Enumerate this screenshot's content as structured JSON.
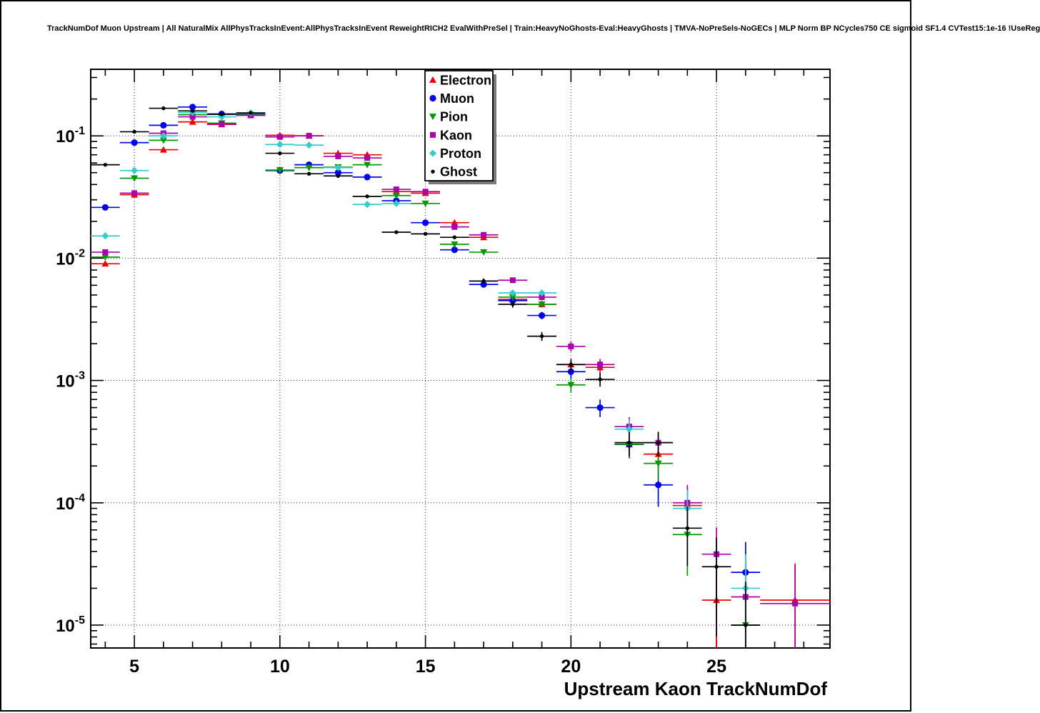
{
  "header": {
    "title": "TrackNumDof Muon Upstream | All NaturalMix AllPhysTracksInEvent:AllPhysTracksInEvent ReweightRICH2 EvalWithPreSel | Train:HeavyNoGhosts-Eval:HeavyGhosts | TMVA-NoPreSels-NoGECs | MLP Norm BP NCycles750 CE sigmoid SF1.4 CVTest15:1e-16 !UseReg"
  },
  "chart_data": {
    "type": "scatter",
    "title": "",
    "xlabel": "Upstream Kaon TrackNumDof",
    "ylabel": "",
    "yscale": "log",
    "grid": true,
    "xlim": [
      3.5,
      28.9
    ],
    "ylim": [
      6.5e-06,
      0.35
    ],
    "xticks_major": [
      5,
      10,
      15,
      20,
      25
    ],
    "xticks_minor_step": 1,
    "ytick_exponents": [
      -1,
      -2,
      -3,
      -4,
      -5
    ],
    "legend_position": "top-center",
    "bin_half_width": 0.5,
    "series": [
      {
        "name": "Electron",
        "color": "#ee0000",
        "marker": "triangle-up",
        "points": [
          [
            4,
            0.009
          ],
          [
            5,
            0.033
          ],
          [
            6,
            0.077
          ],
          [
            7,
            0.13
          ],
          [
            8,
            0.124
          ],
          [
            9,
            0.148
          ],
          [
            10,
            0.101
          ],
          [
            11,
            0.1
          ],
          [
            12,
            0.072
          ],
          [
            13,
            0.07
          ],
          [
            14,
            0.035
          ],
          [
            15,
            0.034
          ],
          [
            16,
            0.0195
          ],
          [
            17,
            0.0148
          ],
          [
            18,
            0.0046
          ],
          [
            19,
            0.0042
          ],
          [
            20,
            0.00135
          ],
          [
            21,
            0.00128
          ],
          [
            22,
            0.0003
          ],
          [
            23,
            0.00025
          ],
          [
            24,
            9.5e-05
          ],
          [
            25,
            1.6e-05
          ],
          [
            27.7,
            1.6e-05,
            1.2
          ]
        ]
      },
      {
        "name": "Muon",
        "color": "#0000ee",
        "marker": "circle",
        "points": [
          [
            4,
            0.026
          ],
          [
            5,
            0.088
          ],
          [
            6,
            0.122
          ],
          [
            7,
            0.172
          ],
          [
            8,
            0.151
          ],
          [
            9,
            0.15
          ],
          [
            10,
            0.052
          ],
          [
            11,
            0.058
          ],
          [
            12,
            0.05
          ],
          [
            13,
            0.046
          ],
          [
            14,
            0.0295
          ],
          [
            15,
            0.0195
          ],
          [
            16,
            0.0117
          ],
          [
            17,
            0.0061
          ],
          [
            18,
            0.0045
          ],
          [
            19,
            0.0034
          ],
          [
            20,
            0.00118
          ],
          [
            21,
            0.0006
          ],
          [
            22,
            0.0003
          ],
          [
            23,
            0.00014
          ],
          [
            26,
            2.7e-05
          ]
        ]
      },
      {
        "name": "Pion",
        "color": "#009900",
        "marker": "triangle-down",
        "points": [
          [
            4,
            0.0102
          ],
          [
            5,
            0.045
          ],
          [
            6,
            0.092
          ],
          [
            7,
            0.149
          ],
          [
            8,
            0.127
          ],
          [
            9,
            0.149
          ],
          [
            10,
            0.0525
          ],
          [
            11,
            0.055
          ],
          [
            12,
            0.0555
          ],
          [
            13,
            0.058
          ],
          [
            14,
            0.0325
          ],
          [
            15,
            0.028
          ],
          [
            16,
            0.013
          ],
          [
            17,
            0.0112
          ],
          [
            18,
            0.0048
          ],
          [
            19,
            0.0042
          ],
          [
            20,
            0.00092
          ],
          [
            22,
            0.0003
          ],
          [
            23,
            0.00021
          ],
          [
            24,
            5.5e-05
          ],
          [
            26,
            1e-05
          ]
        ]
      },
      {
        "name": "Kaon",
        "color": "#aa00aa",
        "marker": "square",
        "points": [
          [
            4,
            0.0112
          ],
          [
            5,
            0.034
          ],
          [
            6,
            0.105
          ],
          [
            7,
            0.143
          ],
          [
            8,
            0.125
          ],
          [
            9,
            0.147
          ],
          [
            10,
            0.098
          ],
          [
            11,
            0.1
          ],
          [
            12,
            0.068
          ],
          [
            13,
            0.066
          ],
          [
            14,
            0.0365
          ],
          [
            15,
            0.035
          ],
          [
            16,
            0.018
          ],
          [
            17,
            0.0155
          ],
          [
            18,
            0.0066
          ],
          [
            19,
            0.0048
          ],
          [
            20,
            0.0019
          ],
          [
            21,
            0.00135
          ],
          [
            22,
            0.00042
          ],
          [
            23,
            0.00031
          ],
          [
            24,
            0.0001
          ],
          [
            25,
            3.8e-05
          ],
          [
            26,
            1.7e-05
          ],
          [
            27.7,
            1.5e-05,
            1.2
          ]
        ]
      },
      {
        "name": "Proton",
        "color": "#33cccc",
        "marker": "diamond",
        "points": [
          [
            4,
            0.0152
          ],
          [
            5,
            0.052
          ],
          [
            6,
            0.1
          ],
          [
            7,
            0.155
          ],
          [
            8,
            0.143
          ],
          [
            9,
            0.154
          ],
          [
            10,
            0.085
          ],
          [
            11,
            0.084
          ],
          [
            12,
            0.055
          ],
          [
            13,
            0.0275
          ],
          [
            14,
            0.028
          ],
          [
            18,
            0.0052
          ],
          [
            19,
            0.0052
          ],
          [
            22,
            0.0004
          ],
          [
            24,
            9e-05
          ],
          [
            26,
            2e-05
          ]
        ]
      },
      {
        "name": "Ghost",
        "color": "#000000",
        "marker": "dot",
        "points": [
          [
            4,
            0.058
          ],
          [
            5,
            0.108
          ],
          [
            6,
            0.168
          ],
          [
            7,
            0.16
          ],
          [
            8,
            0.15
          ],
          [
            9,
            0.154
          ],
          [
            10,
            0.072
          ],
          [
            11,
            0.049
          ],
          [
            12,
            0.047
          ],
          [
            13,
            0.032
          ],
          [
            14,
            0.0163
          ],
          [
            15,
            0.0158
          ],
          [
            16,
            0.0148
          ],
          [
            17,
            0.0065
          ],
          [
            18,
            0.0042
          ],
          [
            19,
            0.0023
          ],
          [
            20,
            0.00135
          ],
          [
            21,
            0.00102
          ],
          [
            22,
            0.00031
          ],
          [
            23,
            0.00031
          ],
          [
            24,
            6.2e-05
          ],
          [
            25,
            3e-05
          ],
          [
            26,
            1e-05
          ]
        ]
      }
    ],
    "legend": {
      "labels": [
        "Electron",
        "Muon",
        "Pion",
        "Kaon",
        "Proton",
        "Ghost"
      ]
    }
  }
}
